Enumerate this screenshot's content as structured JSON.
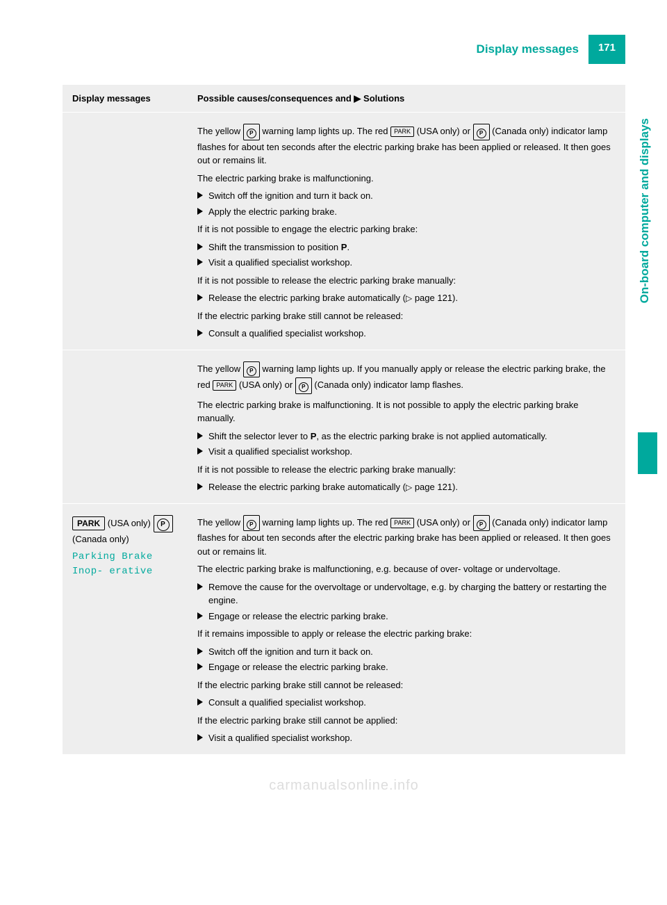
{
  "header": {
    "title": "Display messages",
    "page_number": "171"
  },
  "side_tab": "On-board computer and displays",
  "table": {
    "columns": [
      "Display messages",
      "Possible causes/consequences and ▶ Solutions"
    ],
    "rows": [
      {
        "left": "",
        "right": {
          "p1_a": "The yellow ",
          "p1_b": " warning lamp lights up. The red ",
          "p1_c": " (USA only) or ",
          "p1_d": " (Canada only) indicator lamp flashes for about ten seconds after the electric parking brake has been applied or released. It then goes out or remains lit.",
          "p2": "The electric parking brake is malfunctioning.",
          "a1": "Switch off the ignition and turn it back on.",
          "a2": "Apply the electric parking brake.",
          "p3": "If it is not possible to engage the electric parking brake:",
          "a3_a": "Shift the transmission to position ",
          "a3_b": "P",
          "a3_c": ".",
          "a4": "Visit a qualified specialist workshop.",
          "p4": "If it is not possible to release the electric parking brake manually:",
          "a5_a": "Release the electric parking brake automatically (",
          "a5_b": " page 121).",
          "p5": "If the electric parking brake still cannot be released:",
          "a6": "Consult a qualified specialist workshop."
        }
      },
      {
        "left": "",
        "right": {
          "p1_a": "The yellow ",
          "p1_b": " warning lamp lights up. If you manually apply or release the electric parking brake, the red ",
          "p1_c": " (USA only) or ",
          "p1_d": " (Canada only) indicator lamp flashes.",
          "p2": "The electric parking brake is malfunctioning. It is not possible to apply the electric parking brake manually.",
          "a1_a": "Shift the selector lever to ",
          "a1_b": "P",
          "a1_c": ", as the electric parking brake is not applied automatically.",
          "a2": "Visit a qualified specialist workshop.",
          "p3": "If it is not possible to release the electric parking brake manually:",
          "a3_a": "Release the electric parking brake automatically (",
          "a3_b": " page 121)."
        }
      },
      {
        "left": {
          "usa": "(USA only)",
          "canada": "(Canada only)",
          "msg": "Parking Brake Inop‐ erative"
        },
        "right": {
          "p1_a": "The yellow ",
          "p1_b": " warning lamp lights up. The red ",
          "p1_c": " (USA only) or ",
          "p1_d": " (Canada only) indicator lamp flashes for about ten seconds after the electric parking brake has been applied or released. It then goes out or remains lit.",
          "p2": "The electric parking brake is malfunctioning, e.g. because of over‐ voltage or undervoltage.",
          "a1": "Remove the cause for the overvoltage or undervoltage, e.g. by charging the battery or restarting the engine.",
          "a2": "Engage or release the electric parking brake.",
          "p3": "If it remains impossible to apply or release the electric parking brake:",
          "a3": "Switch off the ignition and turn it back on.",
          "a4": "Engage or release the electric parking brake.",
          "p4": "If the electric parking brake still cannot be released:",
          "a5": "Consult a qualified specialist workshop.",
          "p5": "If the electric parking brake still cannot be applied:",
          "a6": "Visit a qualified specialist workshop."
        }
      }
    ]
  },
  "icons": {
    "park": "PARK",
    "p_circle": "P"
  },
  "watermark": "carmanualsonline.info"
}
